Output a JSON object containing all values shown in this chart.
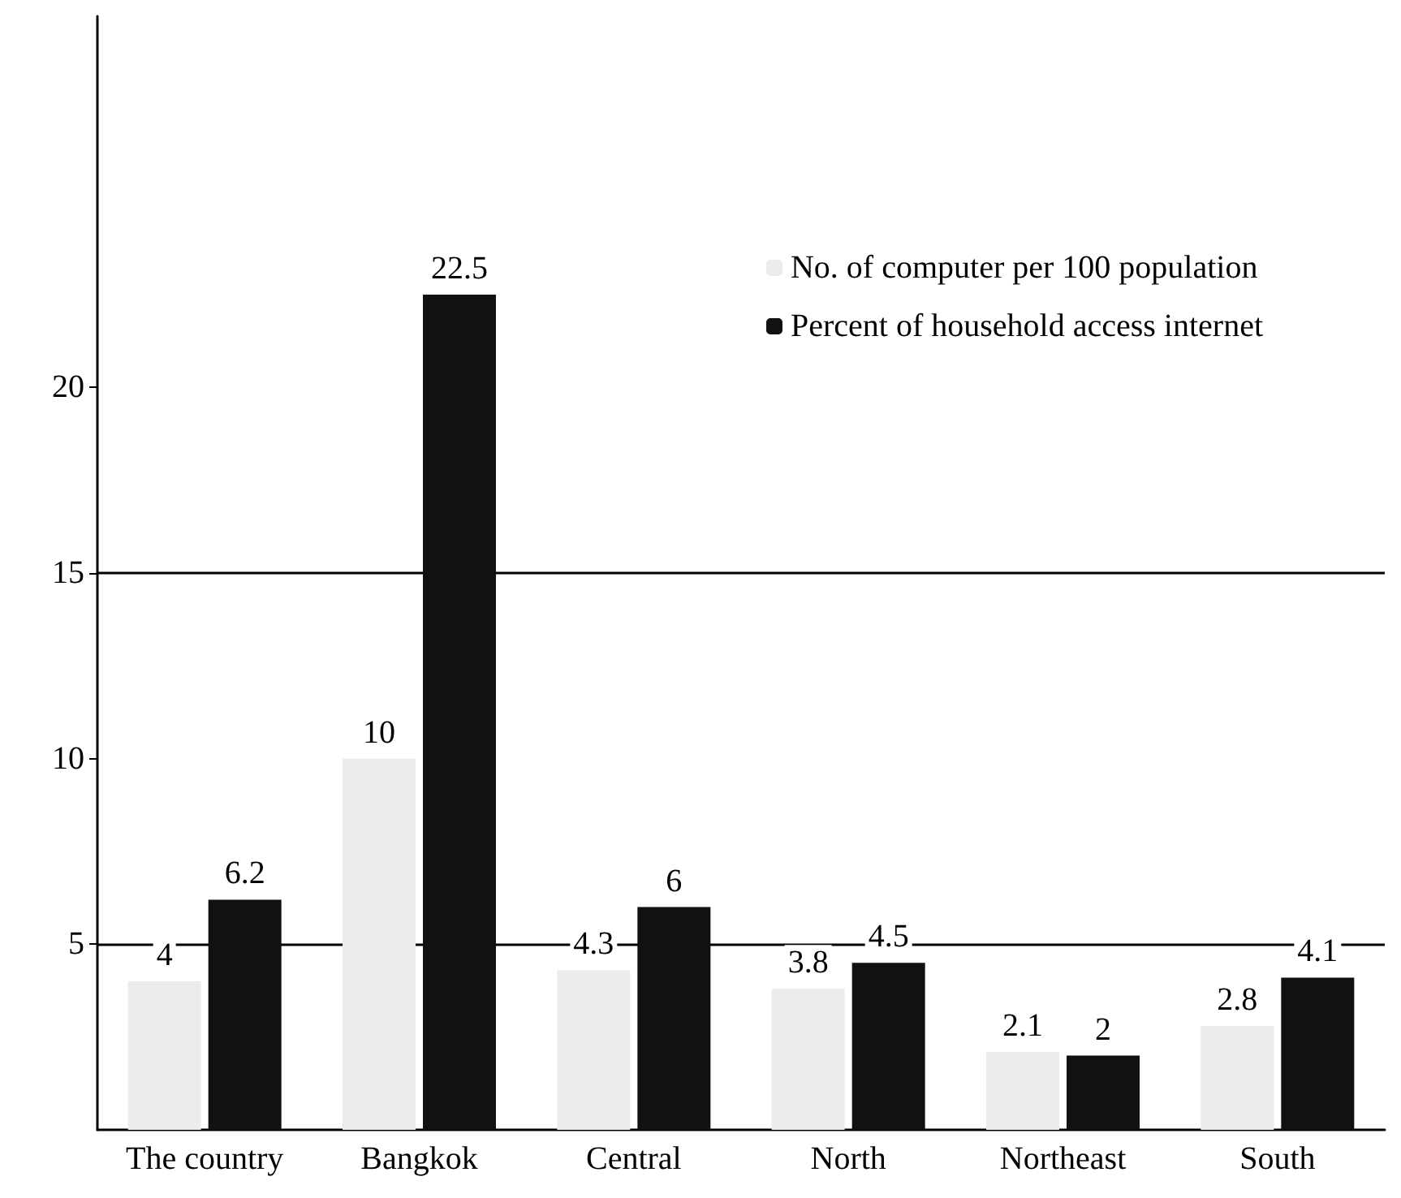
{
  "chart_data": {
    "type": "bar",
    "categories": [
      "The country",
      "Bangkok",
      "Central",
      "North",
      "Northeast",
      "South"
    ],
    "series": [
      {
        "name": "No. of computer per 100 population",
        "color": "#ececec",
        "values": [
          4,
          10,
          4.3,
          3.8,
          2.1,
          2.8
        ]
      },
      {
        "name": "Percent of household access internet",
        "color": "#111111",
        "values": [
          6.2,
          22.5,
          6,
          4.5,
          2,
          4.1
        ]
      }
    ],
    "ylim": [
      0,
      30
    ],
    "yticks": [
      5,
      10,
      15,
      20
    ],
    "grid": false,
    "ref_lines": [
      {
        "axis": "y",
        "value": 5,
        "color": "#000000"
      },
      {
        "axis": "y",
        "value": 15,
        "color": "#000000"
      }
    ],
    "legend": "top right",
    "data_labels": true
  }
}
